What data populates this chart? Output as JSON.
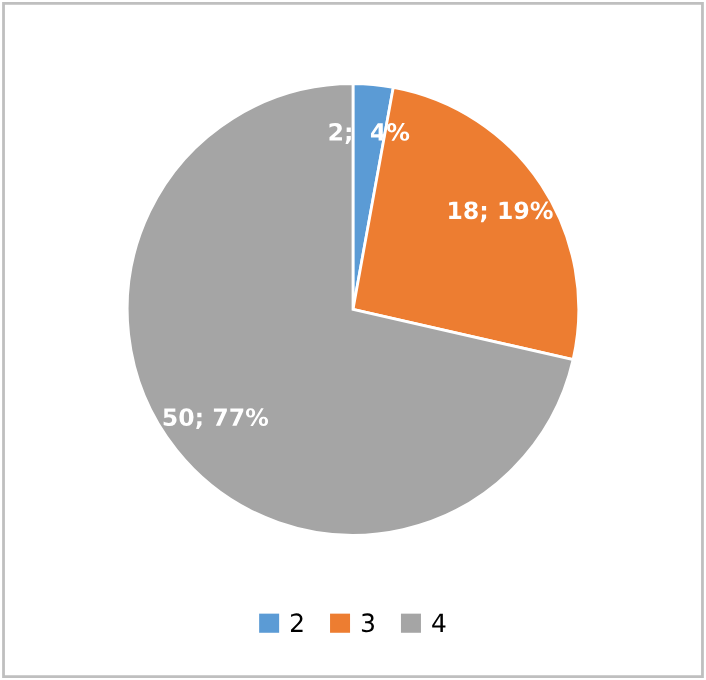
{
  "chart_data": {
    "type": "pie",
    "categories": [
      "2",
      "3",
      "4"
    ],
    "values": [
      2,
      18,
      50
    ],
    "colors": [
      "#5b9bd5",
      "#ed7d31",
      "#a5a5a5"
    ],
    "value_labels": [
      "2;  4%",
      "18; 19%",
      "50; 77%"
    ],
    "legend": "bottom"
  }
}
